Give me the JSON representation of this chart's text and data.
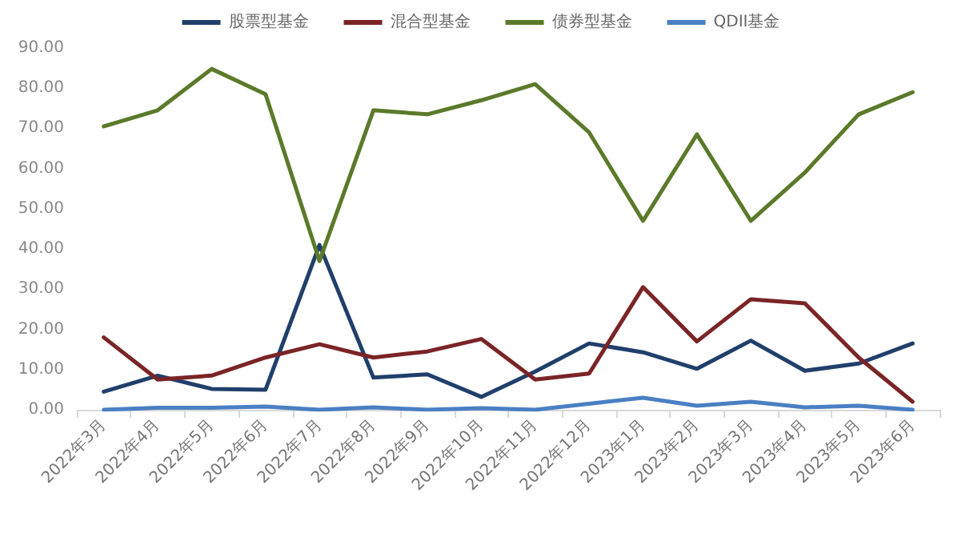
{
  "chart_data": {
    "type": "line",
    "categories": [
      "2022年3月",
      "2022年4月",
      "2022年5月",
      "2022年6月",
      "2022年7月",
      "2022年8月",
      "2022年9月",
      "2022年10月",
      "2022年11月",
      "2022年12月",
      "2023年1月",
      "2023年2月",
      "2023年3月",
      "2023年4月",
      "2023年5月",
      "2023年6月"
    ],
    "series": [
      {
        "name": "股票型基金",
        "color": "#203f6b",
        "values": [
          4.5,
          8.5,
          5.2,
          5,
          41,
          8,
          8.8,
          3.2,
          9.5,
          16.5,
          14.3,
          10.2,
          17.2,
          9.7,
          11.5,
          16.5
        ]
      },
      {
        "name": "混合型基金",
        "color": "#7a2426",
        "values": [
          18,
          7.5,
          8.5,
          13,
          16.3,
          13,
          14.5,
          17.6,
          7.5,
          9,
          30.5,
          17,
          27.5,
          26.5,
          13,
          2
        ]
      },
      {
        "name": "债券型基金",
        "color": "#5b7a2a",
        "values": [
          70.5,
          74.5,
          84.8,
          78.5,
          37,
          74.5,
          73.5,
          77,
          81,
          69,
          47,
          68.5,
          47,
          59,
          73.5,
          79
        ]
      },
      {
        "name": "QDII基金",
        "color": "#4a7fc3",
        "values": [
          0,
          0.5,
          0.5,
          0.8,
          0,
          0.6,
          0,
          0.4,
          0,
          1.5,
          3,
          1,
          2,
          0.6,
          1,
          0
        ]
      }
    ],
    "ylim": [
      0,
      90
    ],
    "yticks": [
      {
        "value": 0,
        "label": "0.00"
      },
      {
        "value": 10,
        "label": "10.00"
      },
      {
        "value": 20,
        "label": "20.00"
      },
      {
        "value": 30,
        "label": "30.00"
      },
      {
        "value": 40,
        "label": "40.00"
      },
      {
        "value": 50,
        "label": "50.00"
      },
      {
        "value": 60,
        "label": "60.00"
      },
      {
        "value": 70,
        "label": "70.00"
      },
      {
        "value": 80,
        "label": "80.00"
      },
      {
        "value": 90,
        "label": "90.00"
      }
    ],
    "grid": false,
    "legend": "top",
    "marker": "none",
    "line_style": "solid"
  }
}
